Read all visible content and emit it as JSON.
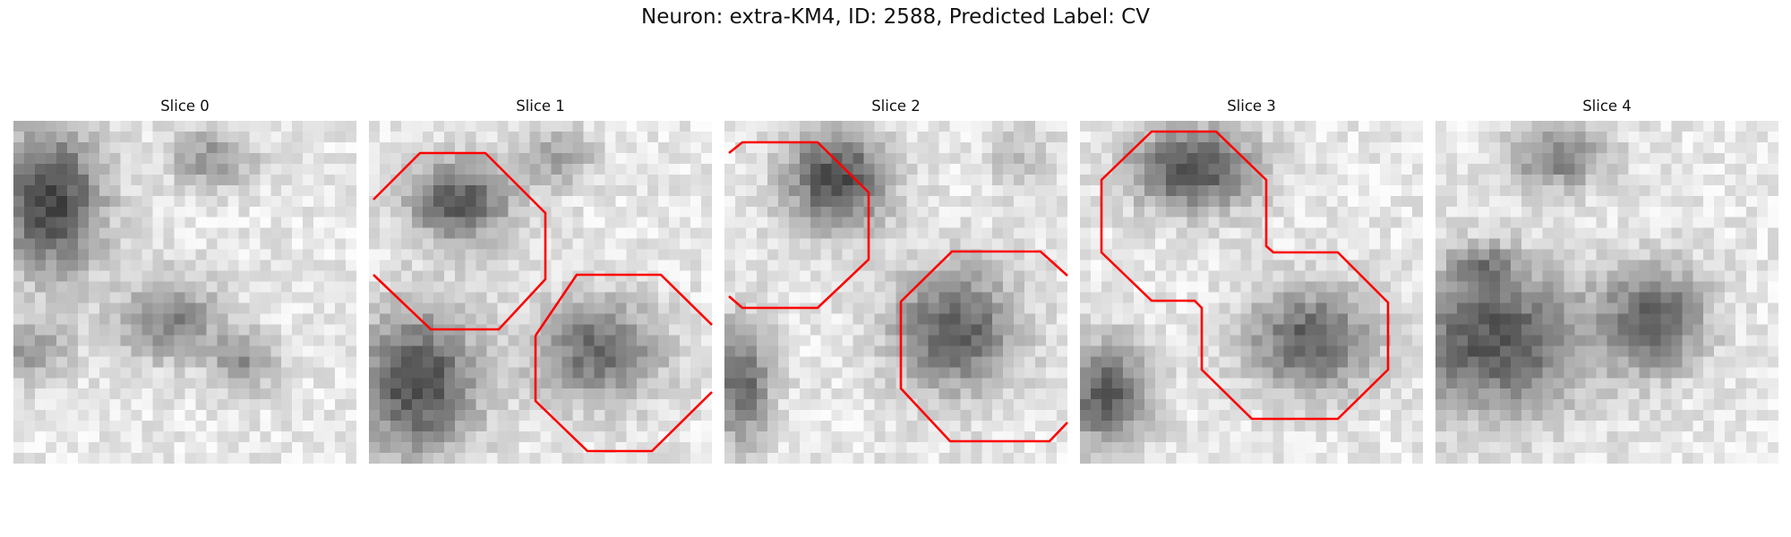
{
  "figure": {
    "title": "Neuron: extra-KM4, ID: 2588, Predicted Label: CV"
  },
  "contour_color": "#ff0000",
  "slices": [
    {
      "label": "Slice 0",
      "contours": []
    },
    {
      "label": "Slice 1",
      "contours": [
        "top-left cell outline",
        "bottom-right cell outline"
      ]
    },
    {
      "label": "Slice 2",
      "contours": [
        "top-left cell outline",
        "bottom-right cell outline"
      ]
    },
    {
      "label": "Slice 3",
      "contours": [
        "merged two-cell outline"
      ]
    },
    {
      "label": "Slice 4",
      "contours": []
    }
  ]
}
